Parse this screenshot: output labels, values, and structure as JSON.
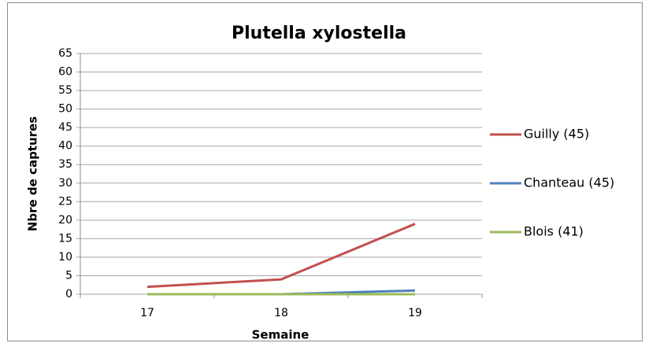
{
  "chart_data": {
    "type": "line",
    "title": "Plutella xylostella",
    "x_label": "Semaine",
    "y_label": "Nbre de captures",
    "categories": [
      "17",
      "18",
      "19"
    ],
    "series": [
      {
        "name": "Guilly (45)",
        "color": "#c0504d",
        "values": [
          2,
          4,
          19
        ]
      },
      {
        "name": "Chanteau (45)",
        "color": "#4f81bd",
        "values": [
          0,
          0,
          1
        ]
      },
      {
        "name": "Blois (41)",
        "color": "#9bbb59",
        "values": [
          0,
          0,
          0
        ]
      }
    ],
    "ylim": [
      0,
      65
    ],
    "yticks": [
      0,
      5,
      10,
      15,
      20,
      25,
      30,
      35,
      40,
      45,
      50,
      55,
      60,
      65
    ],
    "grid": true,
    "legend": "right"
  }
}
